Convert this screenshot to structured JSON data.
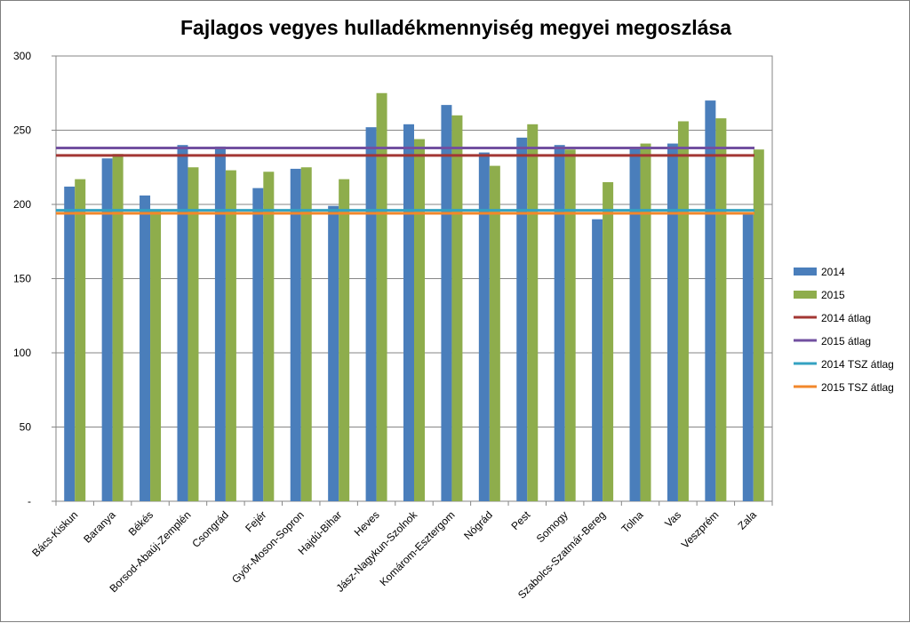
{
  "chart_data": {
    "type": "bar",
    "title": "Fajlagos vegyes hulladékmennyiség megyei megoszlása",
    "xlabel": "",
    "ylabel": "",
    "ylim": [
      0,
      300
    ],
    "y_ticks": [
      0,
      50,
      100,
      150,
      200,
      250,
      300
    ],
    "y_tick_labels": [
      "-",
      "50",
      "100",
      "150",
      "200",
      "250",
      "300"
    ],
    "grid": true,
    "legend_position": "right",
    "categories": [
      "Bács-Kiskun",
      "Baranya",
      "Békés",
      "Borsod-Abaúj-Zemplén",
      "Csongrád",
      "Fejér",
      "Győr-Moson-Sopron",
      "Hajdú-Bihar",
      "Heves",
      "Jász-Nagykun-Szolnok",
      "Komárom-Esztergom",
      "Nógrád",
      "Pest",
      "Somogy",
      "Szabolcs-Szatmár-Bereg",
      "Tolna",
      "Vas",
      "Veszprém",
      "Zala"
    ],
    "series": [
      {
        "name": "2014",
        "color": "#4a7ebb",
        "values": [
          212,
          231,
          206,
          240,
          239,
          211,
          224,
          199,
          252,
          254,
          267,
          235,
          245,
          240,
          190,
          238,
          241,
          270,
          194
        ]
      },
      {
        "name": "2015",
        "color": "#8ead4c",
        "values": [
          217,
          234,
          196,
          225,
          223,
          222,
          225,
          217,
          275,
          244,
          260,
          226,
          254,
          237,
          215,
          241,
          256,
          258,
          237
        ]
      }
    ],
    "reference_lines": [
      {
        "name": "2014 átlag",
        "color": "#a33734",
        "value": 233
      },
      {
        "name": "2015 átlag",
        "color": "#7250a0",
        "value": 238
      },
      {
        "name": "2014 TSZ átlag",
        "color": "#34a2c2",
        "value": 196
      },
      {
        "name": "2015 TSZ átlag",
        "color": "#f2872b",
        "value": 194
      }
    ]
  }
}
